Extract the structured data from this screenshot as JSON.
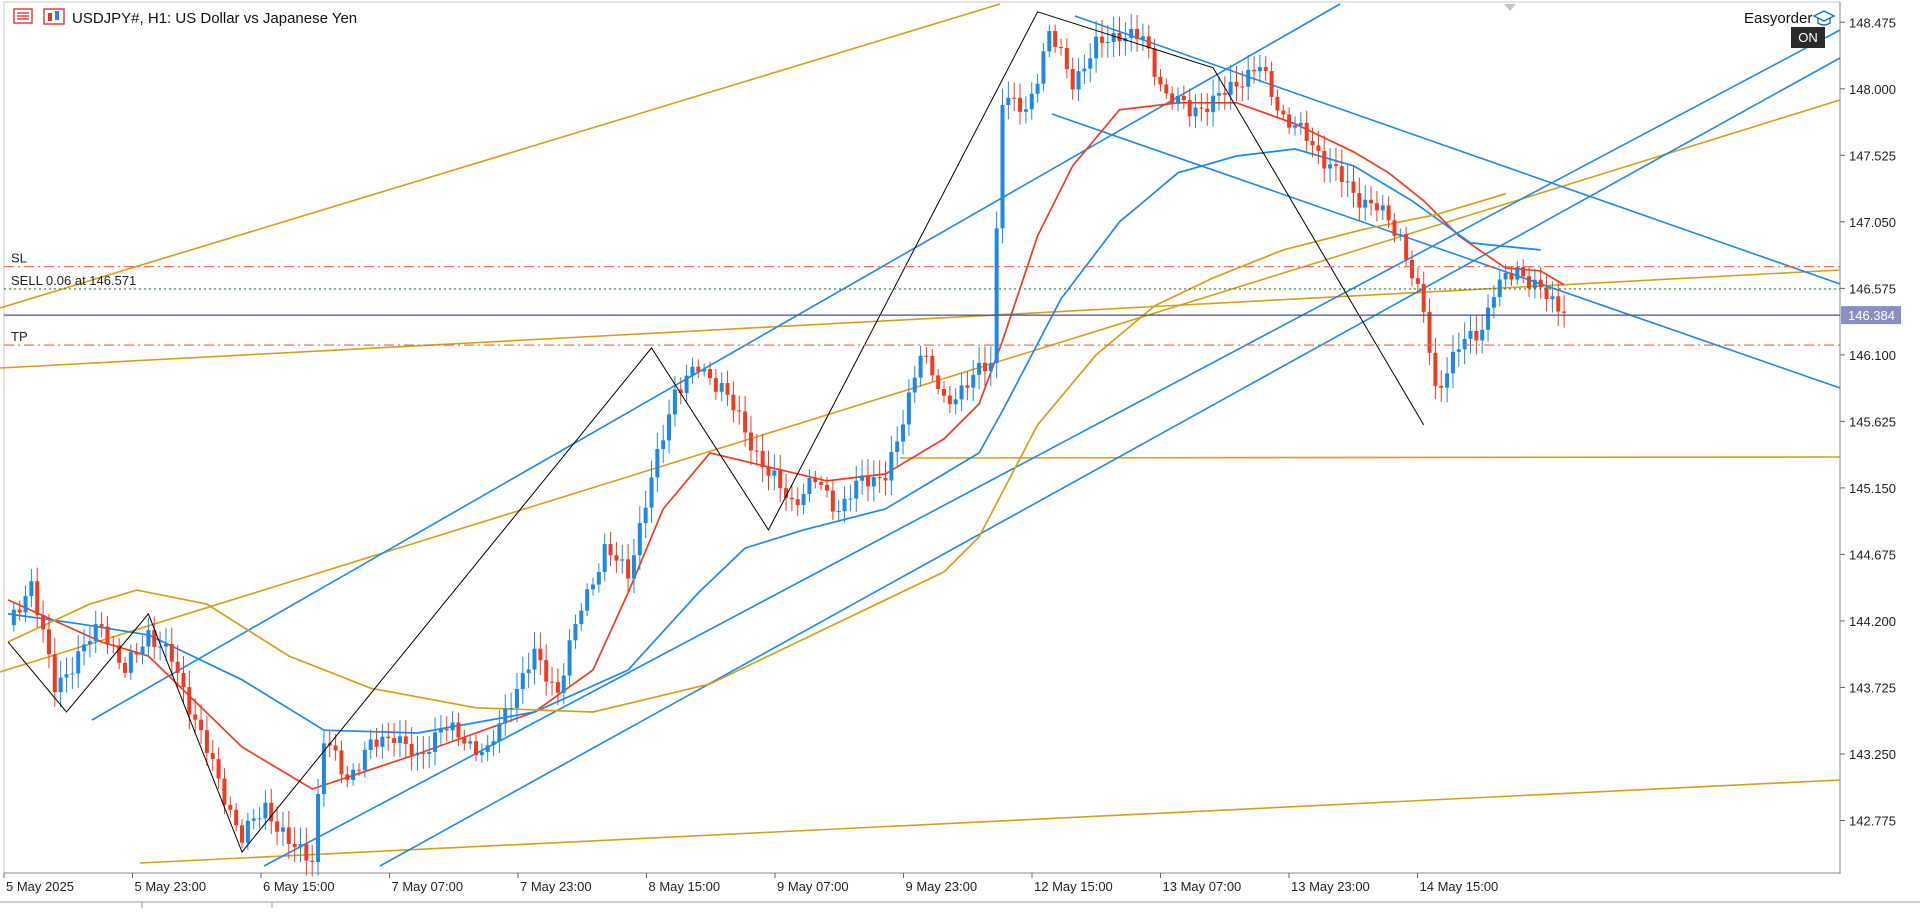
{
  "header": {
    "symbol_label": "USDJPY#, H1:  US Dollar vs Japanese Yen",
    "expert_label": "Easyorder",
    "on_badge": "ON"
  },
  "colors": {
    "bull": "#1e88e5",
    "bear": "#ef3b22",
    "ma_red": "#ef3b22",
    "ma_blue": "#1e88e5",
    "ma_gold": "#d4a017",
    "trend_blue": "#1e88e5",
    "trend_gold": "#d4a017",
    "zigzag": "#000000",
    "order_line": "#4a4a9a",
    "sl_tp": "#e8604a",
    "entry": "#2e7d32",
    "price_tag_bg": "#8a8ec0"
  },
  "chart_data": {
    "type": "candlestick",
    "symbol": "USDJPY#",
    "timeframe": "H1",
    "title": "USDJPY#, H1:  US Dollar vs Japanese Yen",
    "ylim": [
      142.4,
      148.62
    ],
    "y_ticks": [
      "148.475",
      "148.000",
      "147.525",
      "147.050",
      "146.575",
      "146.100",
      "145.625",
      "145.150",
      "144.675",
      "144.200",
      "143.725",
      "143.250",
      "142.775"
    ],
    "x_ticks": [
      "5 May 2025",
      "5 May 23:00",
      "6 May 15:00",
      "7 May 07:00",
      "7 May 23:00",
      "8 May 15:00",
      "9 May 07:00",
      "9 May 23:00",
      "12 May 15:00",
      "13 May 07:00",
      "13 May 23:00",
      "14 May 15:00"
    ],
    "current_price": "146.384",
    "order_lines": [
      {
        "label": "SL",
        "price": 146.73,
        "style": "dashdot"
      },
      {
        "label": "SELL 0.06 at 146.571",
        "price": 146.571,
        "style": "dotted"
      },
      {
        "label": "",
        "price": 146.384,
        "style": "solid"
      },
      {
        "label": "TP",
        "price": 146.17,
        "style": "dashdot"
      }
    ],
    "close_path": [
      [
        0,
        144.14
      ],
      [
        4,
        144.48
      ],
      [
        8,
        143.72
      ],
      [
        12,
        143.95
      ],
      [
        16,
        144.18
      ],
      [
        20,
        143.83
      ],
      [
        24,
        144.12
      ],
      [
        28,
        143.92
      ],
      [
        32,
        143.5
      ],
      [
        36,
        143.05
      ],
      [
        40,
        142.65
      ],
      [
        44,
        142.88
      ],
      [
        48,
        142.6
      ],
      [
        52,
        142.52
      ],
      [
        54,
        143.35
      ],
      [
        58,
        143.08
      ],
      [
        62,
        143.3
      ],
      [
        66,
        143.4
      ],
      [
        70,
        143.2
      ],
      [
        74,
        143.45
      ],
      [
        78,
        143.35
      ],
      [
        82,
        143.25
      ],
      [
        86,
        143.65
      ],
      [
        90,
        143.95
      ],
      [
        94,
        143.7
      ],
      [
        98,
        144.3
      ],
      [
        102,
        144.7
      ],
      [
        106,
        144.55
      ],
      [
        110,
        145.2
      ],
      [
        114,
        145.85
      ],
      [
        118,
        146.0
      ],
      [
        122,
        145.88
      ],
      [
        126,
        145.55
      ],
      [
        130,
        145.25
      ],
      [
        134,
        145.05
      ],
      [
        138,
        145.2
      ],
      [
        142,
        145.0
      ],
      [
        146,
        145.2
      ],
      [
        150,
        145.25
      ],
      [
        152,
        145.45
      ],
      [
        156,
        146.15
      ],
      [
        160,
        145.75
      ],
      [
        164,
        145.9
      ],
      [
        168,
        146.05
      ],
      [
        170,
        147.95
      ],
      [
        174,
        147.82
      ],
      [
        178,
        148.4
      ],
      [
        182,
        148.05
      ],
      [
        186,
        148.3
      ],
      [
        190,
        148.4
      ],
      [
        194,
        148.35
      ],
      [
        198,
        147.95
      ],
      [
        202,
        147.85
      ],
      [
        206,
        147.9
      ],
      [
        210,
        148.05
      ],
      [
        214,
        148.15
      ],
      [
        218,
        147.8
      ],
      [
        222,
        147.65
      ],
      [
        226,
        147.45
      ],
      [
        230,
        147.25
      ],
      [
        234,
        147.15
      ],
      [
        238,
        146.95
      ],
      [
        242,
        146.4
      ],
      [
        244,
        145.85
      ],
      [
        248,
        146.15
      ],
      [
        252,
        146.3
      ],
      [
        254,
        146.55
      ],
      [
        258,
        146.72
      ],
      [
        262,
        146.55
      ],
      [
        266,
        146.4
      ]
    ],
    "moving_averages": [
      {
        "color": "red",
        "points": [
          [
            0,
            144.35
          ],
          [
            16,
            144.05
          ],
          [
            24,
            143.95
          ],
          [
            40,
            143.3
          ],
          [
            52,
            143.0
          ],
          [
            70,
            143.25
          ],
          [
            90,
            143.55
          ],
          [
            100,
            143.85
          ],
          [
            106,
            144.4
          ],
          [
            112,
            145.0
          ],
          [
            120,
            145.4
          ],
          [
            130,
            145.3
          ],
          [
            140,
            145.2
          ],
          [
            150,
            145.25
          ],
          [
            160,
            145.5
          ],
          [
            166,
            145.75
          ],
          [
            170,
            146.2
          ],
          [
            176,
            146.95
          ],
          [
            182,
            147.45
          ],
          [
            190,
            147.85
          ],
          [
            200,
            147.9
          ],
          [
            210,
            147.9
          ],
          [
            220,
            147.75
          ],
          [
            230,
            147.55
          ],
          [
            236,
            147.4
          ],
          [
            242,
            147.2
          ],
          [
            248,
            146.95
          ],
          [
            256,
            146.72
          ],
          [
            262,
            146.7
          ],
          [
            266,
            146.6
          ]
        ]
      },
      {
        "color": "blue",
        "points": [
          [
            0,
            144.25
          ],
          [
            12,
            144.18
          ],
          [
            24,
            144.1
          ],
          [
            40,
            143.78
          ],
          [
            54,
            143.42
          ],
          [
            70,
            143.4
          ],
          [
            90,
            143.55
          ],
          [
            106,
            143.85
          ],
          [
            118,
            144.4
          ],
          [
            126,
            144.72
          ],
          [
            136,
            144.85
          ],
          [
            150,
            145.0
          ],
          [
            160,
            145.25
          ],
          [
            166,
            145.4
          ],
          [
            170,
            145.7
          ],
          [
            180,
            146.5
          ],
          [
            190,
            147.05
          ],
          [
            200,
            147.4
          ],
          [
            210,
            147.52
          ],
          [
            220,
            147.57
          ],
          [
            230,
            147.45
          ],
          [
            240,
            147.2
          ],
          [
            250,
            146.9
          ],
          [
            262,
            146.85
          ]
        ]
      },
      {
        "color": "gold",
        "points": [
          [
            0,
            144.05
          ],
          [
            14,
            144.32
          ],
          [
            22,
            144.42
          ],
          [
            34,
            144.32
          ],
          [
            48,
            143.95
          ],
          [
            62,
            143.72
          ],
          [
            80,
            143.58
          ],
          [
            100,
            143.55
          ],
          [
            120,
            143.75
          ],
          [
            140,
            144.15
          ],
          [
            160,
            144.55
          ],
          [
            166,
            144.8
          ],
          [
            176,
            145.6
          ],
          [
            186,
            146.1
          ],
          [
            196,
            146.45
          ],
          [
            206,
            146.65
          ],
          [
            218,
            146.85
          ],
          [
            232,
            147.0
          ],
          [
            244,
            147.1
          ],
          [
            256,
            147.25
          ]
        ]
      }
    ],
    "zigzag": [
      [
        0,
        144.05
      ],
      [
        10,
        143.55
      ],
      [
        24,
        144.25
      ],
      [
        40,
        142.55
      ],
      [
        110,
        146.15
      ],
      [
        130,
        144.85
      ],
      [
        176,
        148.55
      ],
      [
        206,
        148.15
      ],
      [
        242,
        145.6
      ]
    ]
  }
}
